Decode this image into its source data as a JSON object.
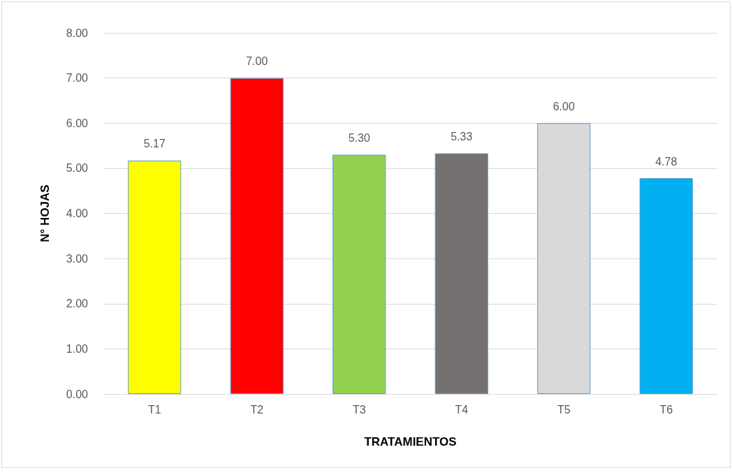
{
  "chart_data": {
    "type": "bar",
    "xlabel": "TRATAMIENTOS",
    "ylabel": "N° HOJAS",
    "categories": [
      "T1",
      "T2",
      "T3",
      "T4",
      "T5",
      "T6"
    ],
    "values": [
      5.17,
      7.0,
      5.3,
      5.33,
      6.0,
      4.78
    ],
    "colors": [
      "#ffff00",
      "#ff0000",
      "#92d050",
      "#767171",
      "#d9d9d9",
      "#00b0f0"
    ],
    "value_labels": [
      "5.17",
      "7.00",
      "5.30",
      "5.33",
      "6.00",
      "4.78"
    ],
    "ylim": [
      0,
      8
    ],
    "yticks": [
      {
        "value": 0,
        "label": "0.00"
      },
      {
        "value": 1,
        "label": "1.00"
      },
      {
        "value": 2,
        "label": "2.00"
      },
      {
        "value": 3,
        "label": "3.00"
      },
      {
        "value": 4,
        "label": "4.00"
      },
      {
        "value": 5,
        "label": "5.00"
      },
      {
        "value": 6,
        "label": "6.00"
      },
      {
        "value": 7,
        "label": "7.00"
      },
      {
        "value": 8,
        "label": "8.00"
      }
    ],
    "grid": "y"
  }
}
